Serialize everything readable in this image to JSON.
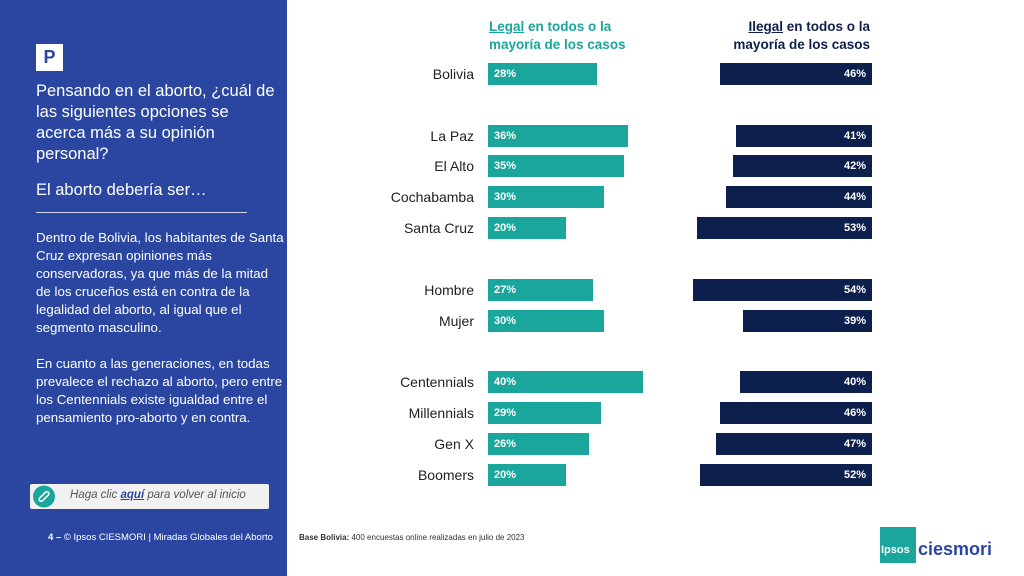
{
  "sidebar": {
    "badge": "P",
    "question": "Pensando en el aborto, ¿cuál de las siguientes opciones se acerca más a su opinión personal?",
    "sub_question": "El aborto debería ser…",
    "paragraph1": "Dentro de Bolivia, los habitantes de Santa Cruz expresan opiniones más conservadoras, ya que más de la mitad de los cruceños está en contra de la legalidad del aborto, al igual que el segmento masculino.",
    "paragraph2": "En cuanto a las generaciones, en todas prevalece el rechazo al aborto, pero entre los Centennials existe igualdad entre el pensamiento pro-aborto y en contra.",
    "link": {
      "prefix": "Haga clic ",
      "link": "aquí",
      "suffix": " para volver al inicio"
    },
    "footer": {
      "page": "4 –",
      "text": "© Ipsos CIESMORI | Miradas Globales del Aborto"
    }
  },
  "base_note": {
    "label": "Base Bolivia:",
    "text": " 400 encuestas online realizadas en julio de 2023"
  },
  "logo": {
    "ipsos": "Ipsos",
    "ciesmori": "ciesmori"
  },
  "colors": {
    "legal": "#1aa59d",
    "ilegal": "#0d1f4c",
    "sidebar": "#2b46a0"
  },
  "chart_data": {
    "type": "bar",
    "legend": {
      "legal_word": "Legal",
      "legal_rest": " en todos o la mayoría de los casos",
      "ilegal_word": "Ilegal",
      "ilegal_rest": " en todos o la mayoría de los casos"
    },
    "categories": [
      "Bolivia",
      "La Paz",
      "El Alto",
      "Cochabamba",
      "Santa Cruz",
      "Hombre",
      "Mujer",
      "Centennials",
      "Millennials",
      "Gen X",
      "Boomers"
    ],
    "series": [
      {
        "name": "Legal en todos o la mayoría de los casos",
        "values": [
          28,
          36,
          35,
          30,
          20,
          27,
          30,
          40,
          29,
          26,
          20
        ]
      },
      {
        "name": "Ilegal en todos o la mayoría de los casos",
        "values": [
          46,
          41,
          42,
          44,
          53,
          54,
          39,
          40,
          46,
          47,
          52
        ]
      }
    ],
    "value_suffix": "%"
  }
}
